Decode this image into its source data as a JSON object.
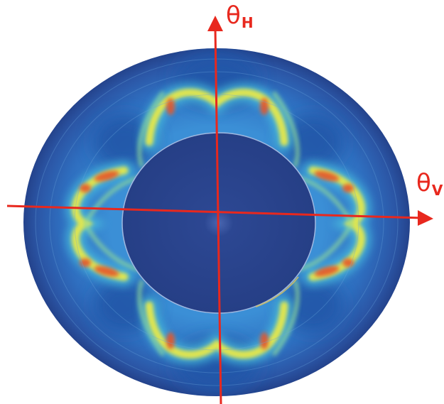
{
  "axes": {
    "vertical": {
      "symbol": "θ",
      "subscript": "H"
    },
    "horizontal": {
      "symbol": "θ",
      "subscript": "V"
    }
  },
  "colors": {
    "axis": "#e8281e",
    "outer_rim": "#2a4c98",
    "inner_disk": "#27438a",
    "field_low": "#2d6fc4",
    "field_mid": "#3fb3d8",
    "field_high": "#f1e93a",
    "field_peak": "#e4552a"
  }
}
